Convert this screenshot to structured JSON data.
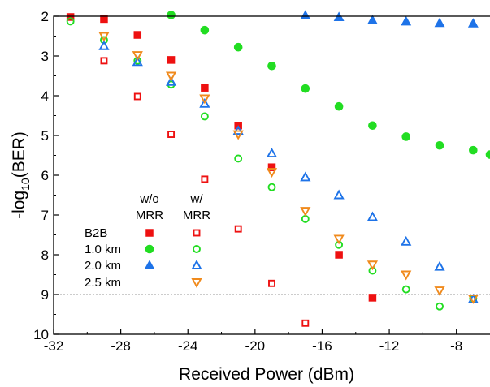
{
  "chart_data": {
    "type": "scatter",
    "xlabel": "Received Power (dBm)",
    "ylabel_main": "-log",
    "ylabel_sub": "10",
    "ylabel_tail": "(BER)",
    "xlim": [
      -32,
      -6
    ],
    "ylim": [
      10,
      2
    ],
    "y_inverted": true,
    "xticks": [
      -32,
      -28,
      -24,
      -20,
      -16,
      -12,
      -8
    ],
    "yticks": [
      2,
      3,
      4,
      5,
      6,
      7,
      8,
      9,
      10
    ],
    "reference_line": {
      "y": 9,
      "style": "dotted",
      "color": "#9a9a9a"
    },
    "colors": {
      "B2B": "#ee1111",
      "1.0 km": "#22dd22",
      "2.0 km": "#1e73e8",
      "2.5 km": "#f08a1c"
    },
    "legend": {
      "col_headers": [
        [
          "w/o",
          "MRR"
        ],
        [
          "w/",
          "MRR"
        ]
      ],
      "rows": [
        "B2B",
        "1.0 km",
        "2.0 km",
        "2.5 km"
      ]
    },
    "series": [
      {
        "name": "B2B w/o MRR",
        "group": "B2B",
        "marker": "square",
        "filled": true,
        "points": [
          [
            -31,
            2.02
          ],
          [
            -29,
            2.07
          ],
          [
            -27,
            2.47
          ],
          [
            -25,
            3.1
          ],
          [
            -23,
            3.8
          ],
          [
            -21,
            4.75
          ],
          [
            -19,
            5.8
          ],
          [
            -15,
            8.0
          ],
          [
            -13,
            9.08
          ]
        ]
      },
      {
        "name": "B2B w/ MRR",
        "group": "B2B",
        "marker": "square",
        "filled": false,
        "points": [
          [
            -29,
            3.12
          ],
          [
            -27,
            4.02
          ],
          [
            -25,
            4.97
          ],
          [
            -23,
            6.1
          ],
          [
            -21,
            7.35
          ],
          [
            -19,
            8.72
          ],
          [
            -17,
            9.72
          ]
        ]
      },
      {
        "name": "1.0 km w/o MRR",
        "group": "1.0 km",
        "marker": "circle",
        "filled": true,
        "points": [
          [
            -25,
            1.97
          ],
          [
            -23,
            2.35
          ],
          [
            -21,
            2.78
          ],
          [
            -19,
            3.25
          ],
          [
            -17,
            3.82
          ],
          [
            -15,
            4.27
          ],
          [
            -13,
            4.75
          ],
          [
            -11,
            5.03
          ],
          [
            -9,
            5.25
          ],
          [
            -7,
            5.37
          ],
          [
            -6,
            5.48
          ]
        ]
      },
      {
        "name": "1.0 km w/ MRR",
        "group": "1.0 km",
        "marker": "circle",
        "filled": false,
        "points": [
          [
            -31,
            2.13
          ],
          [
            -29,
            2.6
          ],
          [
            -27,
            3.12
          ],
          [
            -25,
            3.72
          ],
          [
            -23,
            4.52
          ],
          [
            -21,
            5.58
          ],
          [
            -19,
            6.3
          ],
          [
            -17,
            7.1
          ],
          [
            -15,
            7.75
          ],
          [
            -13,
            8.4
          ],
          [
            -11,
            8.87
          ],
          [
            -9,
            9.3
          ],
          [
            -7,
            9.1
          ]
        ]
      },
      {
        "name": "2.0 km w/o MRR",
        "group": "2.0 km",
        "marker": "triangle-up",
        "filled": true,
        "points": [
          [
            -17,
            1.98
          ],
          [
            -15,
            2.02
          ],
          [
            -13,
            2.1
          ],
          [
            -11,
            2.13
          ],
          [
            -9,
            2.17
          ],
          [
            -7,
            2.18
          ]
        ]
      },
      {
        "name": "2.0 km w/ MRR",
        "group": "2.0 km",
        "marker": "triangle-up",
        "filled": false,
        "points": [
          [
            -29,
            2.75
          ],
          [
            -27,
            3.15
          ],
          [
            -25,
            3.65
          ],
          [
            -23,
            4.2
          ],
          [
            -21,
            4.88
          ],
          [
            -19,
            5.45
          ],
          [
            -17,
            6.05
          ],
          [
            -15,
            6.5
          ],
          [
            -13,
            7.05
          ],
          [
            -11,
            7.67
          ],
          [
            -9,
            8.3
          ],
          [
            -7,
            9.12
          ]
        ]
      },
      {
        "name": "2.5 km w/ MRR",
        "group": "2.5 km",
        "marker": "triangle-down",
        "filled": false,
        "points": [
          [
            -29,
            2.5
          ],
          [
            -27,
            2.98
          ],
          [
            -25,
            3.5
          ],
          [
            -23,
            4.07
          ],
          [
            -21,
            4.97
          ],
          [
            -19,
            5.92
          ],
          [
            -17,
            6.9
          ],
          [
            -15,
            7.6
          ],
          [
            -13,
            8.25
          ],
          [
            -11,
            8.5
          ],
          [
            -9,
            8.9
          ],
          [
            -7,
            9.1
          ]
        ]
      }
    ]
  }
}
